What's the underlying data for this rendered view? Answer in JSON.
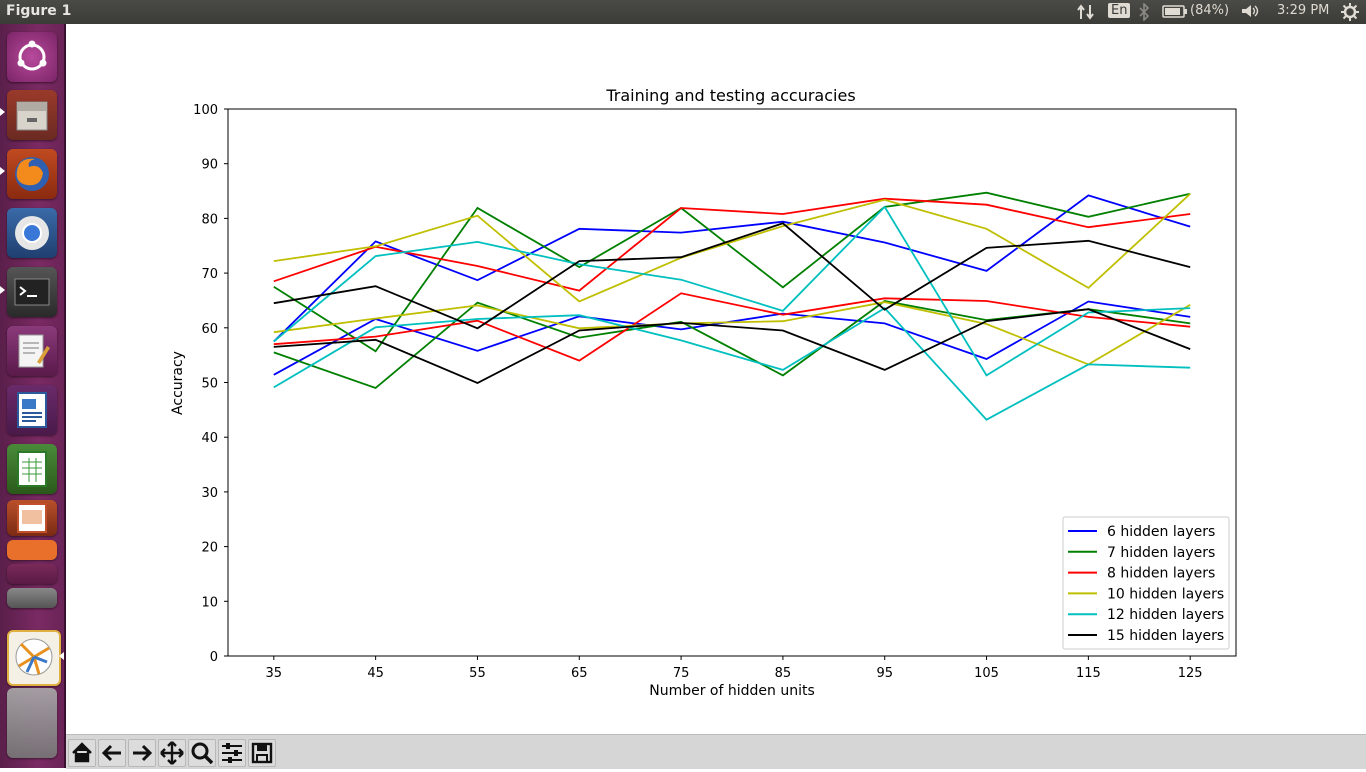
{
  "window": {
    "title": "Figure 1"
  },
  "topbar": {
    "keyboard_layout": "En",
    "battery_percent": "(84%)",
    "clock": "3:29 PM"
  },
  "launcher": {
    "items": [
      "ubuntu-dash-icon",
      "files-icon",
      "firefox-icon",
      "chromium-icon",
      "terminal-icon",
      "text-editor-icon",
      "writer-icon",
      "calc-icon",
      "impress-icon",
      "amazon-icon",
      "software-center-icon",
      "settings-icon",
      "matplotlib-figure-icon",
      "stacked-apps-icon"
    ]
  },
  "toolbar": {
    "buttons": [
      "home-icon",
      "back-icon",
      "forward-icon",
      "pan-icon",
      "zoom-icon",
      "configure-subplots-icon",
      "save-icon"
    ]
  },
  "colors": {
    "blue": "#0000ff",
    "green": "#008000",
    "red": "#ff0000",
    "yellow": "#bfbf00",
    "cyan": "#00bfbf",
    "black": "#000000"
  },
  "chart_data": {
    "type": "line",
    "title": "Training and testing accuracies",
    "xlabel": "Number of hidden units",
    "ylabel": "Accuracy",
    "x": [
      35,
      45,
      55,
      65,
      75,
      85,
      95,
      105,
      115,
      125
    ],
    "xlim": [
      30.5,
      129.5
    ],
    "ylim": [
      0,
      100
    ],
    "yticks": [
      0,
      10,
      20,
      30,
      40,
      50,
      60,
      70,
      80,
      90,
      100
    ],
    "legend_position": "lower-right",
    "legend": [
      "6 hidden layers",
      "7 hidden layers",
      "8 hidden layers",
      "10 hidden layers",
      "12 hidden layers",
      "15 hidden layers"
    ],
    "series": [
      {
        "name": "6 hidden layers",
        "color": "#0000ff",
        "values": [
          57.5,
          75.8,
          68.7,
          78.1,
          77.4,
          79.4,
          75.6,
          70.4,
          84.2,
          78.5
        ]
      },
      {
        "name": "6 hidden layers",
        "color": "#0000ff",
        "values": [
          51.4,
          61.6,
          55.8,
          62.1,
          59.7,
          62.6,
          60.8,
          54.3,
          64.8,
          62.0
        ]
      },
      {
        "name": "7 hidden layers",
        "color": "#008000",
        "values": [
          67.5,
          55.7,
          81.9,
          71.1,
          81.9,
          67.4,
          82.1,
          84.7,
          80.3,
          84.5
        ]
      },
      {
        "name": "7 hidden layers",
        "color": "#008000",
        "values": [
          55.5,
          49.0,
          64.6,
          58.2,
          61.1,
          51.3,
          64.9,
          61.4,
          63.4,
          60.8
        ]
      },
      {
        "name": "8 hidden layers",
        "color": "#ff0000",
        "values": [
          68.5,
          74.8,
          71.3,
          66.8,
          81.9,
          80.8,
          83.6,
          82.5,
          78.4,
          80.8
        ]
      },
      {
        "name": "8 hidden layers",
        "color": "#ff0000",
        "values": [
          57.0,
          58.4,
          61.3,
          54.0,
          66.3,
          62.4,
          65.4,
          64.9,
          62.0,
          60.2
        ]
      },
      {
        "name": "10 hidden layers",
        "color": "#bfbf00",
        "values": [
          72.2,
          74.9,
          80.5,
          64.8,
          72.8,
          78.6,
          83.4,
          78.1,
          67.3,
          84.5
        ]
      },
      {
        "name": "10 hidden layers",
        "color": "#bfbf00",
        "values": [
          59.2,
          61.7,
          64.1,
          59.9,
          60.8,
          61.2,
          64.7,
          60.7,
          53.3,
          64.2
        ]
      },
      {
        "name": "12 hidden layers",
        "color": "#00bfbf",
        "values": [
          57.5,
          73.1,
          75.7,
          71.6,
          68.8,
          63.1,
          82.1,
          51.3,
          62.8,
          63.6
        ]
      },
      {
        "name": "12 hidden layers",
        "color": "#00bfbf",
        "values": [
          49.1,
          60.1,
          61.6,
          62.3,
          57.7,
          52.3,
          63.6,
          43.2,
          53.3,
          52.7
        ]
      },
      {
        "name": "15 hidden layers",
        "color": "#000000",
        "values": [
          64.5,
          67.6,
          59.9,
          72.2,
          72.9,
          79.1,
          63.3,
          74.6,
          75.9,
          71.1
        ]
      },
      {
        "name": "15 hidden layers",
        "color": "#000000",
        "values": [
          56.5,
          57.8,
          49.9,
          59.5,
          60.9,
          59.5,
          52.3,
          61.2,
          63.4,
          56.1
        ]
      }
    ]
  }
}
